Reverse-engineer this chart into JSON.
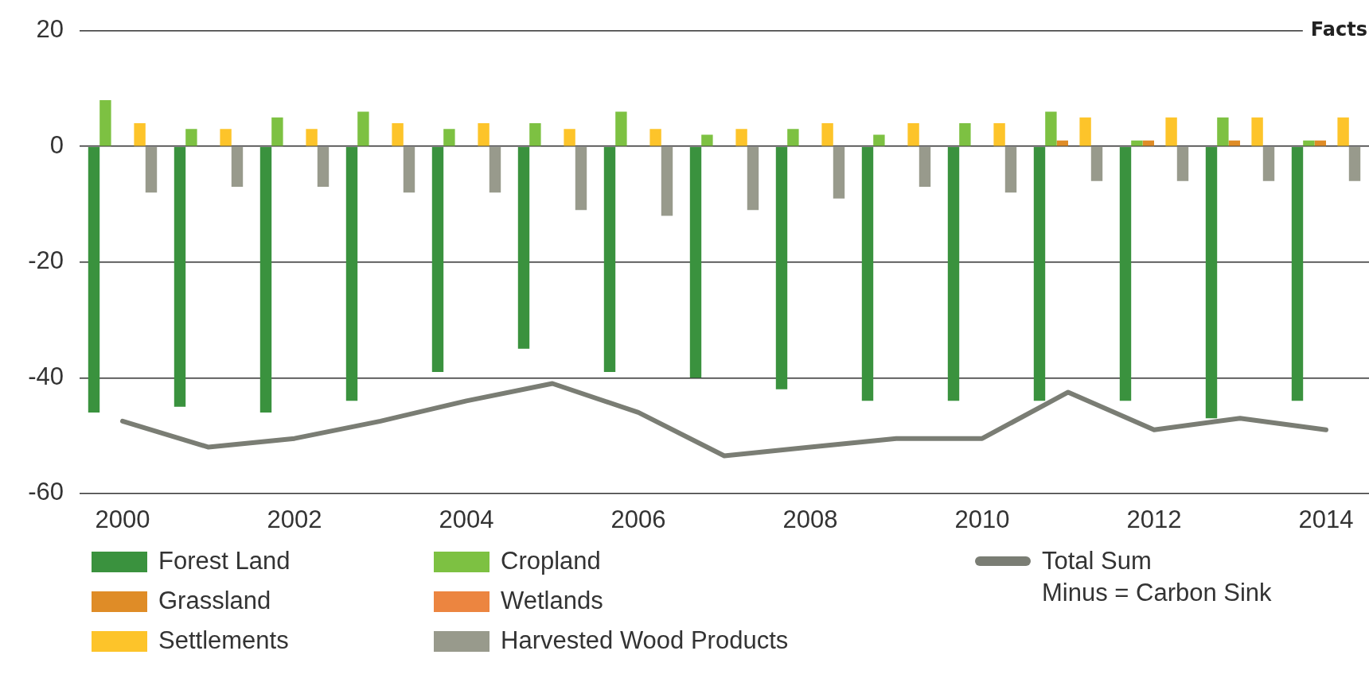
{
  "chart_data": {
    "type": "bar",
    "categories": [
      "2000",
      null,
      "2002",
      null,
      "2004",
      null,
      "2006",
      null,
      "2008",
      null,
      "2010",
      null,
      "2012",
      null,
      "2014"
    ],
    "series": [
      {
        "name": "Forest Land",
        "color": "#3a923e",
        "values": [
          -46,
          -45,
          -46,
          -44,
          -39,
          -35,
          -39,
          -40,
          -42,
          -44,
          -44,
          -44,
          -44,
          -47,
          -44
        ]
      },
      {
        "name": "Cropland",
        "color": "#7dc142",
        "values": [
          8,
          3,
          5,
          6,
          3,
          4,
          6,
          2,
          3,
          2,
          4,
          6,
          1,
          5,
          1
        ]
      },
      {
        "name": "Grassland",
        "color": "#df8c27",
        "values": [
          null,
          null,
          null,
          null,
          null,
          null,
          null,
          null,
          null,
          null,
          null,
          1,
          1,
          1,
          1
        ]
      },
      {
        "name": "Wetlands",
        "color": "#ec8540",
        "values": [
          null,
          null,
          null,
          null,
          null,
          null,
          null,
          null,
          null,
          null,
          null,
          null,
          null,
          null,
          null
        ]
      },
      {
        "name": "Settlements",
        "color": "#fdc42a",
        "values": [
          4,
          3,
          3,
          4,
          4,
          3,
          3,
          3,
          4,
          4,
          4,
          5,
          5,
          5,
          5
        ]
      },
      {
        "name": "Harvested Wood Products",
        "color": "#989a8c",
        "values": [
          -8,
          -7,
          -7,
          -8,
          -8,
          -11,
          -12,
          -11,
          -9,
          -7,
          -8,
          -6,
          -6,
          -6,
          -6
        ]
      },
      {
        "name": "Total Sum\nMinus = Carbon Sink",
        "type": "line",
        "color": "#7a7d74",
        "values": [
          -47.5,
          -52,
          -50.5,
          -47.5,
          -44,
          -41,
          -46,
          -53.5,
          -52,
          -50.5,
          -50.5,
          -42.5,
          -49,
          -47,
          -49
        ]
      }
    ],
    "ylim": [
      -60,
      20
    ],
    "yticks": [
      -60,
      -40,
      -20,
      0,
      20
    ],
    "grid": "y",
    "legend": "bottom",
    "marker": "none",
    "annotations": [
      "Facts"
    ]
  }
}
